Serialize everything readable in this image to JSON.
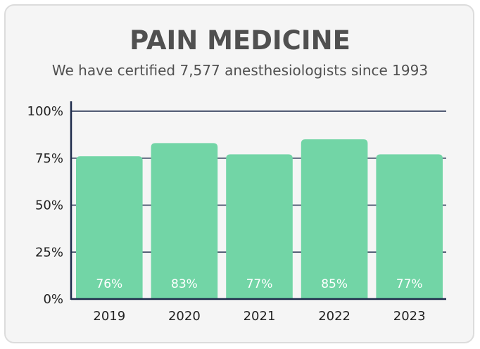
{
  "chart_data": {
    "type": "bar",
    "title": "PAIN MEDICINE",
    "subtitle": "We have certified 7,577 anesthesiologists since 1993",
    "categories": [
      "2019",
      "2020",
      "2021",
      "2022",
      "2023"
    ],
    "values": [
      76,
      83,
      77,
      85,
      77
    ],
    "value_labels": [
      "76%",
      "83%",
      "77%",
      "85%",
      "77%"
    ],
    "y_ticks": [
      0,
      25,
      50,
      75,
      100
    ],
    "y_tick_labels": [
      "0%",
      "25%",
      "50%",
      "75%",
      "100%"
    ],
    "ylim": [
      0,
      100
    ],
    "grid": true,
    "bar_color": "#72d5a6",
    "axis_color": "#1c2a4a"
  }
}
